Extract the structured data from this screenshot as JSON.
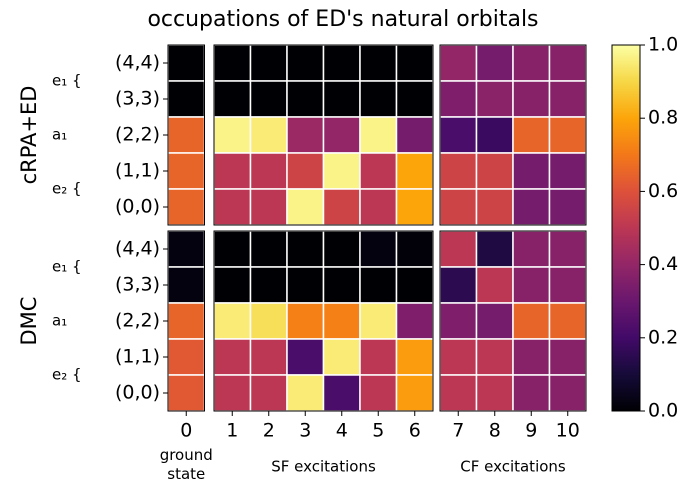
{
  "chart_data": {
    "type": "heatmap",
    "title": "occupations of ED's natural orbitals",
    "row_labels": [
      "(4,4)",
      "(3,3)",
      "(2,2)",
      "(1,1)",
      "(0,0)"
    ],
    "orbital_labels": [
      "e₁ {",
      "a₁",
      "e₂ {"
    ],
    "panels": [
      {
        "label": "ground state",
        "x": [
          0
        ]
      },
      {
        "label": "SF excitations",
        "x": [
          1,
          2,
          3,
          4,
          5,
          6
        ]
      },
      {
        "label": "CF excitations",
        "x": [
          7,
          8,
          9,
          10
        ]
      }
    ],
    "blocks": [
      {
        "name": "cRPA+ED",
        "values": [
          [
            0.0,
            0.0,
            0.0,
            0.0,
            0.0,
            0.0,
            0.0,
            0.4,
            0.33,
            0.37,
            0.37
          ],
          [
            0.0,
            0.0,
            0.0,
            0.0,
            0.0,
            0.0,
            0.0,
            0.35,
            0.38,
            0.37,
            0.37
          ],
          [
            0.65,
            0.97,
            0.95,
            0.42,
            0.4,
            0.97,
            0.33,
            0.22,
            0.18,
            0.65,
            0.65
          ],
          [
            0.65,
            0.5,
            0.5,
            0.55,
            0.97,
            0.5,
            0.8,
            0.55,
            0.55,
            0.33,
            0.33
          ],
          [
            0.65,
            0.5,
            0.5,
            0.97,
            0.55,
            0.5,
            0.8,
            0.55,
            0.55,
            0.33,
            0.33
          ]
        ]
      },
      {
        "name": "DMC",
        "values": [
          [
            0.02,
            0.0,
            0.0,
            0.0,
            0.0,
            0.02,
            0.01,
            0.5,
            0.12,
            0.37,
            0.37
          ],
          [
            0.02,
            0.0,
            0.0,
            0.0,
            0.0,
            0.0,
            0.0,
            0.15,
            0.5,
            0.37,
            0.37
          ],
          [
            0.65,
            0.95,
            0.92,
            0.72,
            0.72,
            0.95,
            0.35,
            0.35,
            0.33,
            0.65,
            0.65
          ],
          [
            0.62,
            0.5,
            0.5,
            0.22,
            0.95,
            0.5,
            0.78,
            0.5,
            0.5,
            0.37,
            0.37
          ],
          [
            0.62,
            0.5,
            0.5,
            0.95,
            0.22,
            0.5,
            0.78,
            0.5,
            0.5,
            0.37,
            0.37
          ]
        ]
      }
    ],
    "colorbar": {
      "cmap": "inferno",
      "lim": [
        0,
        1
      ],
      "ticks": [
        {
          "value": 0,
          "label": "0.0"
        },
        {
          "value": 0.2,
          "label": "0.2"
        },
        {
          "value": 0.4,
          "label": "0.4"
        },
        {
          "value": 0.6,
          "label": "0.6"
        },
        {
          "value": 0.8,
          "label": "0.8"
        },
        {
          "value": 1,
          "label": "1.0"
        }
      ]
    }
  }
}
